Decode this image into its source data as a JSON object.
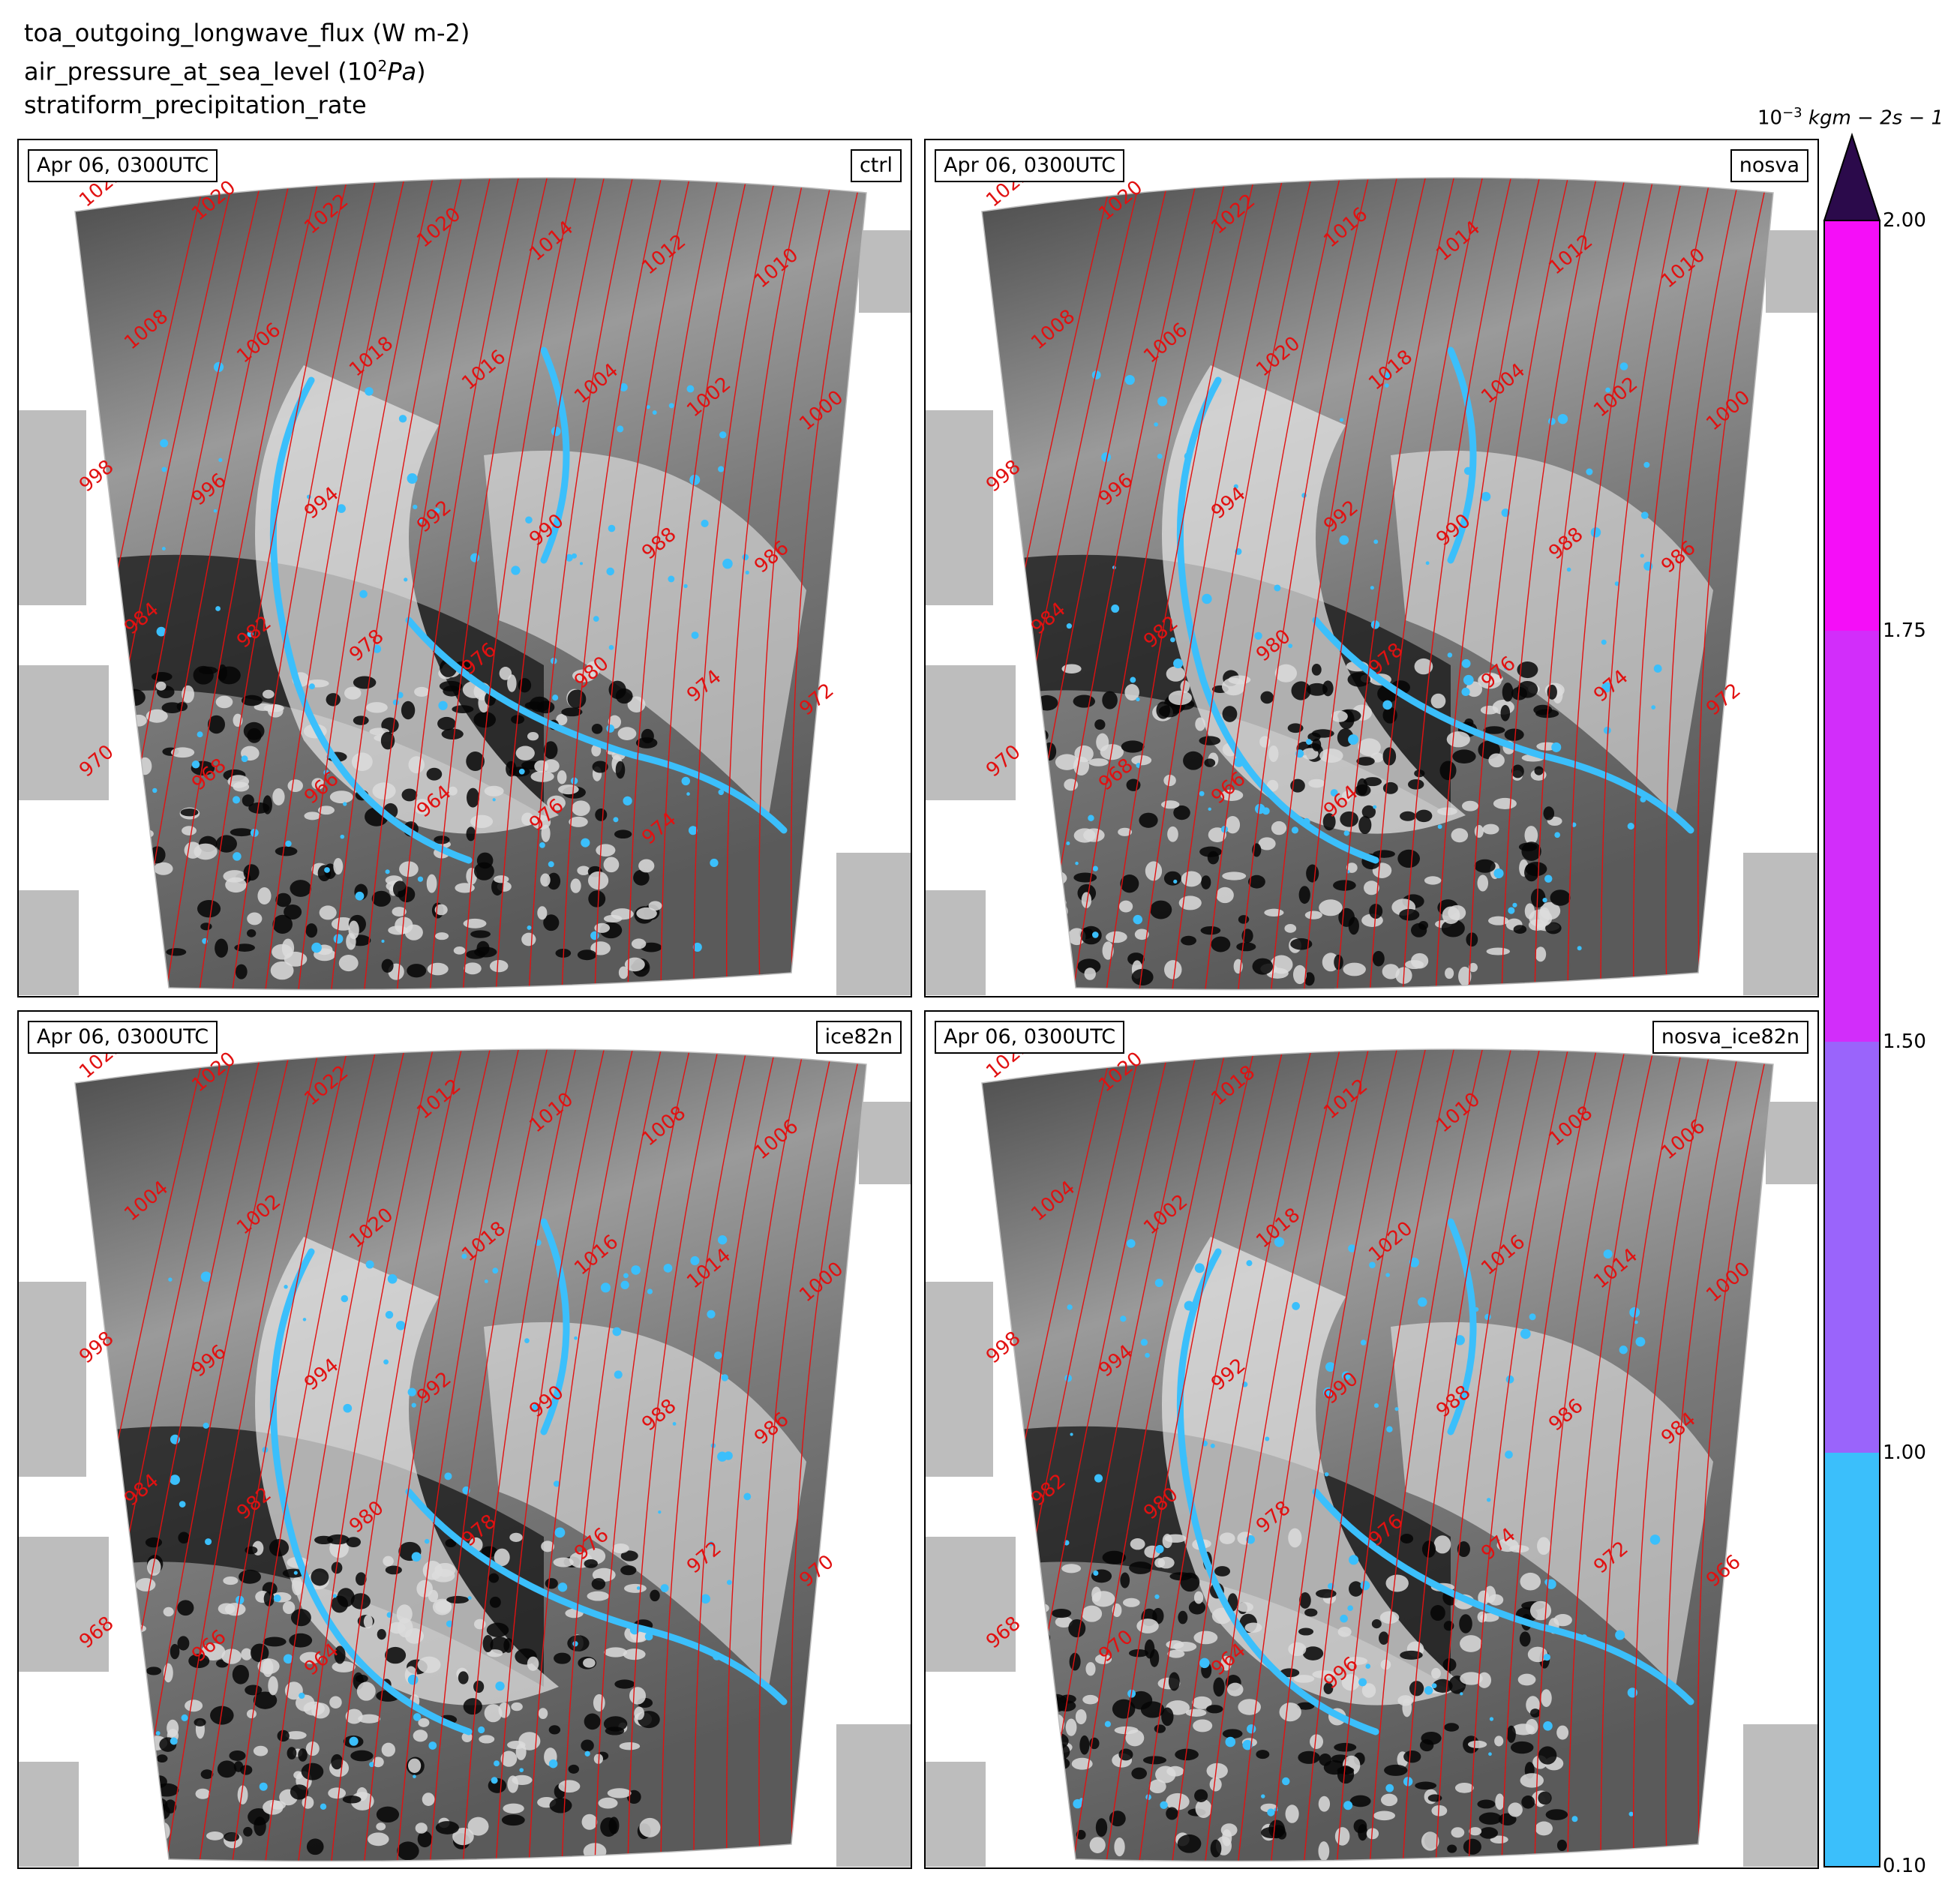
{
  "header": {
    "line1": "toa_outgoing_longwave_flux (W m-2)",
    "line2_pre": "air_pressure_at_sea_level (10",
    "line2_sup": "2",
    "line2_post": " Pa)",
    "line3": "stratiform_precipitation_rate"
  },
  "panels": [
    {
      "date": "Apr 06, 0300UTC",
      "run": "ctrl",
      "labels": [
        "1022",
        "1020",
        "1022",
        "1020",
        "1014",
        "1012",
        "1010",
        "1008",
        "1006",
        "1018",
        "1016",
        "1004",
        "1002",
        "1000",
        "998",
        "996",
        "994",
        "992",
        "990",
        "988",
        "986",
        "984",
        "982",
        "978",
        "976",
        "980",
        "974",
        "972",
        "970",
        "968",
        "966",
        "964",
        "976",
        "974"
      ]
    },
    {
      "date": "Apr 06, 0300UTC",
      "run": "nosva",
      "labels": [
        "1022",
        "1020",
        "1022",
        "1016",
        "1014",
        "1012",
        "1010",
        "1008",
        "1006",
        "1020",
        "1018",
        "1004",
        "1002",
        "1000",
        "998",
        "996",
        "994",
        "992",
        "990",
        "988",
        "986",
        "984",
        "982",
        "980",
        "978",
        "976",
        "974",
        "972",
        "970",
        "968",
        "966",
        "964"
      ]
    },
    {
      "date": "Apr 06, 0300UTC",
      "run": "ice82n",
      "labels": [
        "1022",
        "1020",
        "1022",
        "1012",
        "1010",
        "1008",
        "1006",
        "1004",
        "1002",
        "1020",
        "1018",
        "1016",
        "1014",
        "1000",
        "998",
        "996",
        "994",
        "992",
        "990",
        "988",
        "986",
        "984",
        "982",
        "980",
        "978",
        "976",
        "972",
        "970",
        "968",
        "966",
        "964"
      ]
    },
    {
      "date": "Apr 06, 0300UTC",
      "run": "nosva_ice82n",
      "labels": [
        "1022",
        "1020",
        "1018",
        "1012",
        "1010",
        "1008",
        "1006",
        "1004",
        "1002",
        "1018",
        "1020",
        "1016",
        "1014",
        "1000",
        "998",
        "994",
        "992",
        "990",
        "988",
        "986",
        "984",
        "982",
        "980",
        "978",
        "976",
        "974",
        "972",
        "966",
        "968",
        "970",
        "964",
        "996"
      ]
    }
  ],
  "colorbar": {
    "units_pre": "10",
    "units_sup": "−3",
    "units_post": " kgm − 2s − 1",
    "ticks": [
      "2.00",
      "1.75",
      "1.50",
      "1.00",
      "0.10"
    ],
    "levels": [
      0.1,
      1.0,
      1.5,
      1.75,
      2.0
    ],
    "colors": [
      "#3bbffb",
      "#9a64fb",
      "#d22dfa",
      "#f50ef8"
    ],
    "extend_color": "#2b0a4b"
  },
  "colors": {
    "isobar": "#e11111",
    "land": "#bdbdbd",
    "precip": "#3bbffb"
  }
}
